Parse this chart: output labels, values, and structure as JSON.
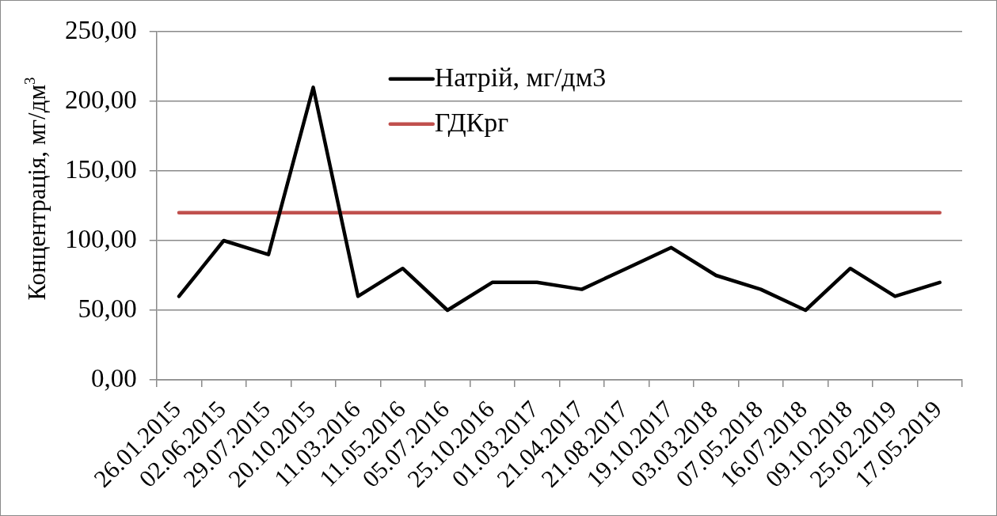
{
  "chart_data": {
    "type": "line",
    "ylabel": "Концентрація, мг/дм$^{3}$",
    "categories": [
      "26.01.2015",
      "02.06.2015",
      "29.07.2015",
      "20.10.2015",
      "11.03.2016",
      "11.05.2016",
      "05.07.2016",
      "25.10.2016",
      "01.03.2017",
      "21.04.2017",
      "21.08.2017",
      "19.10.2017",
      "03.03.2018",
      "07.05.2018",
      "16.07.2018",
      "09.10.2018",
      "25.02.2019",
      "17.05.2019"
    ],
    "series": [
      {
        "name": "Натрій, мг/дм3",
        "color": "#000000",
        "values": [
          60,
          100,
          90,
          210,
          60,
          80,
          50,
          70,
          70,
          65,
          80,
          95,
          75,
          65,
          50,
          80,
          60,
          70
        ]
      },
      {
        "name": "ГДКрг",
        "color": "#c0504d",
        "values": [
          120,
          120,
          120,
          120,
          120,
          120,
          120,
          120,
          120,
          120,
          120,
          120,
          120,
          120,
          120,
          120,
          120,
          120
        ]
      }
    ],
    "ylim": [
      0,
      250
    ],
    "yticks": [
      {
        "value": 0,
        "label": "0,00"
      },
      {
        "value": 50,
        "label": "50,00"
      },
      {
        "value": 100,
        "label": "100,00"
      },
      {
        "value": 150,
        "label": "150,00"
      },
      {
        "value": 200,
        "label": "200,00"
      },
      {
        "value": 250,
        "label": "250,00"
      }
    ],
    "grid": "y",
    "legend": "top",
    "marker": "none",
    "line_style": "solid"
  }
}
